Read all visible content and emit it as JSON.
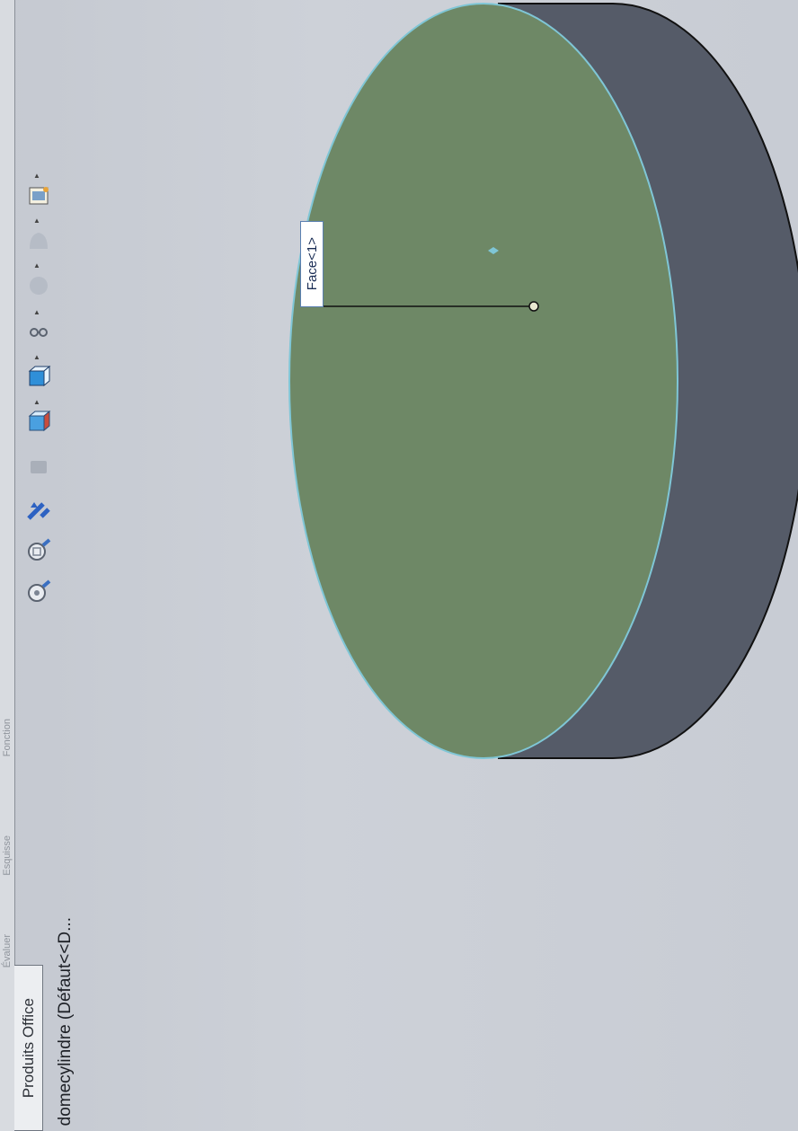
{
  "tabs": {
    "faint_labels": [
      "Évaluer",
      "Esquisse",
      "Fonction"
    ],
    "active_tab": "Produits Office"
  },
  "feature_tree": {
    "root_label": "domecylindre  (Défaut<<D..."
  },
  "heads_up_toolbar": {
    "icons": [
      "zoom-to-fit-icon",
      "zoom-area-icon",
      "previous-view-icon",
      "section-view-icon",
      "view-orientation-icon",
      "display-style-icon",
      "hide-show-items-icon",
      "edit-appearance-icon",
      "apply-scene-icon",
      "view-settings-icon"
    ]
  },
  "viewport": {
    "selection_label": "Face<1>",
    "face_color": "#6e8866",
    "side_color": "#555b68"
  }
}
